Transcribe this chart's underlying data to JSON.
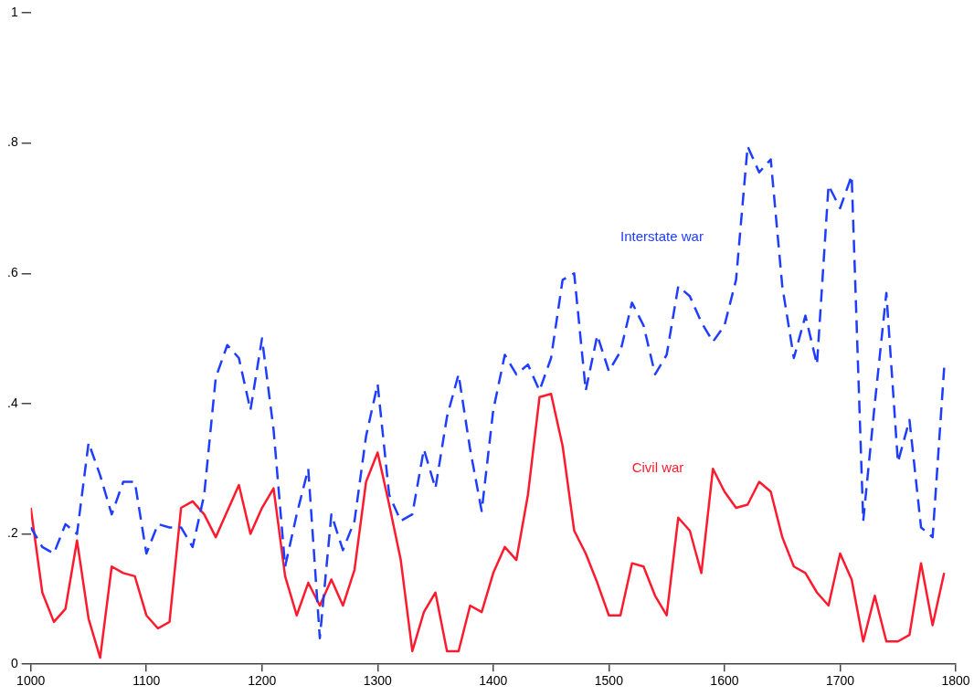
{
  "chart_data": {
    "type": "line",
    "x": [
      1000,
      1010,
      1020,
      1030,
      1040,
      1050,
      1060,
      1070,
      1080,
      1090,
      1100,
      1110,
      1120,
      1130,
      1140,
      1150,
      1160,
      1170,
      1180,
      1190,
      1200,
      1210,
      1220,
      1230,
      1240,
      1250,
      1260,
      1270,
      1280,
      1290,
      1300,
      1310,
      1320,
      1330,
      1340,
      1350,
      1360,
      1370,
      1380,
      1390,
      1400,
      1410,
      1420,
      1430,
      1440,
      1450,
      1460,
      1470,
      1480,
      1490,
      1500,
      1510,
      1520,
      1530,
      1540,
      1550,
      1560,
      1570,
      1580,
      1590,
      1600,
      1610,
      1620,
      1630,
      1640,
      1650,
      1660,
      1670,
      1680,
      1690,
      1700,
      1710,
      1720,
      1730,
      1740,
      1750,
      1760,
      1770,
      1780,
      1790
    ],
    "series": [
      {
        "name": "Interstate war",
        "color": "#1f3dff",
        "line_style": "dashed",
        "values": [
          0.21,
          0.18,
          0.17,
          0.215,
          0.2,
          0.34,
          0.29,
          0.23,
          0.28,
          0.28,
          0.17,
          0.215,
          0.21,
          0.21,
          0.18,
          0.26,
          0.44,
          0.49,
          0.47,
          0.39,
          0.5,
          0.36,
          0.15,
          0.23,
          0.3,
          0.04,
          0.23,
          0.175,
          0.22,
          0.35,
          0.43,
          0.26,
          0.22,
          0.23,
          0.33,
          0.27,
          0.38,
          0.445,
          0.33,
          0.235,
          0.39,
          0.475,
          0.445,
          0.46,
          0.42,
          0.47,
          0.59,
          0.6,
          0.42,
          0.505,
          0.45,
          0.48,
          0.555,
          0.52,
          0.445,
          0.475,
          0.58,
          0.565,
          0.525,
          0.495,
          0.52,
          0.59,
          0.795,
          0.755,
          0.775,
          0.58,
          0.47,
          0.535,
          0.46,
          0.735,
          0.7,
          0.75,
          0.22,
          0.4,
          0.57,
          0.31,
          0.375,
          0.21,
          0.195,
          0.455
        ]
      },
      {
        "name": "Civil war",
        "color": "#ff1a2e",
        "line_style": "solid",
        "values": [
          0.24,
          0.11,
          0.065,
          0.085,
          0.19,
          0.07,
          0.01,
          0.15,
          0.14,
          0.135,
          0.075,
          0.055,
          0.065,
          0.24,
          0.25,
          0.23,
          0.195,
          0.235,
          0.275,
          0.2,
          0.24,
          0.27,
          0.135,
          0.075,
          0.125,
          0.09,
          0.13,
          0.09,
          0.145,
          0.28,
          0.325,
          0.245,
          0.16,
          0.02,
          0.08,
          0.11,
          0.02,
          0.02,
          0.09,
          0.08,
          0.14,
          0.18,
          0.16,
          0.26,
          0.41,
          0.415,
          0.335,
          0.205,
          0.17,
          0.125,
          0.075,
          0.075,
          0.155,
          0.15,
          0.105,
          0.075,
          0.225,
          0.205,
          0.14,
          0.3,
          0.265,
          0.24,
          0.245,
          0.28,
          0.265,
          0.195,
          0.15,
          0.14,
          0.11,
          0.09,
          0.17,
          0.13,
          0.035,
          0.105,
          0.035,
          0.035,
          0.045,
          0.155,
          0.06,
          0.14
        ]
      }
    ],
    "xlim": [
      1000,
      1800
    ],
    "xticks": [
      1000,
      1100,
      1200,
      1300,
      1400,
      1500,
      1600,
      1700,
      1800
    ],
    "ylim": [
      0,
      1
    ],
    "yticks": [
      0,
      {
        "value": 0.2,
        "label": ".2"
      },
      {
        "value": 0.4,
        "label": ".4"
      },
      {
        "value": 0.6,
        "label": ".6"
      },
      {
        "value": 0.8,
        "label": ".8"
      },
      1
    ],
    "grid": false,
    "legend": false,
    "marker": "none"
  }
}
